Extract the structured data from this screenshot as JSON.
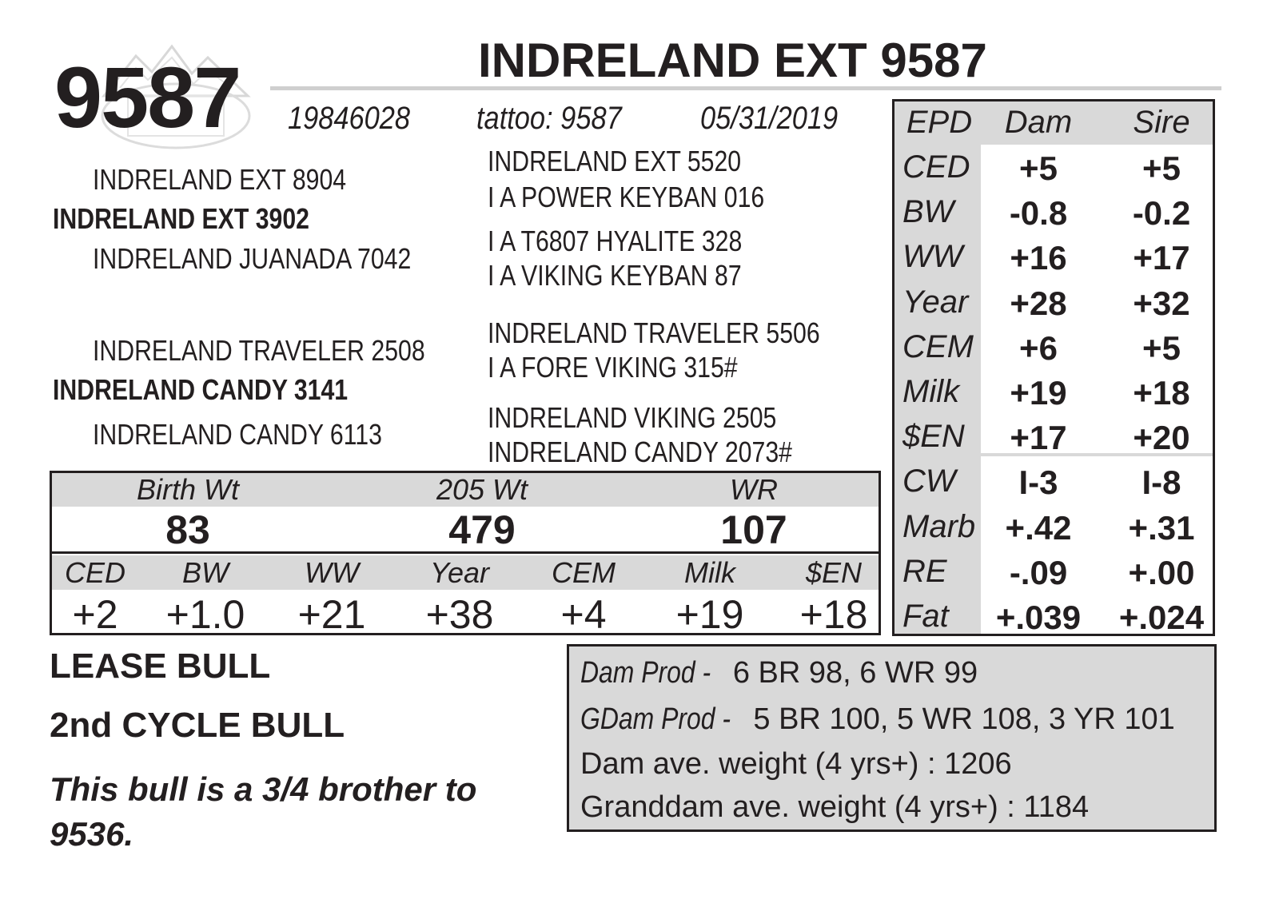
{
  "header": {
    "lot_number": "9587",
    "name": "INDRELAND EXT 9587",
    "registration": "19846028",
    "tattoo": "tattoo: 9587",
    "birth_date": "05/31/2019"
  },
  "pedigree": {
    "sire": "INDRELAND EXT 3902",
    "sire_sire": "INDRELAND EXT 8904",
    "sire_dam": "INDRELAND JUANADA 7042",
    "dam": "INDRELAND CANDY 3141",
    "dam_sire": "INDRELAND TRAVELER 2508",
    "dam_dam": "INDRELAND CANDY 6113",
    "gg": [
      "INDRELAND EXT 5520",
      "I A POWER KEYBAN 016",
      "I A T6807 HYALITE 328",
      "I A VIKING KEYBAN 87",
      "INDRELAND TRAVELER 5506",
      "I A FORE VIKING 315#",
      "INDRELAND VIKING 2505",
      "INDRELAND CANDY 2073#"
    ]
  },
  "performance": {
    "headers": [
      "Birth Wt",
      "205 Wt",
      "WR"
    ],
    "values": [
      "83",
      "479",
      "107"
    ]
  },
  "own_epds": {
    "headers": [
      "CED",
      "BW",
      "WW",
      "Year",
      "CEM",
      "Milk",
      "$EN"
    ],
    "values": [
      "+2",
      "+1.0",
      "+21",
      "+38",
      "+4",
      "+19",
      "+18"
    ]
  },
  "epd_table": {
    "headers": [
      "EPD",
      "Dam",
      "Sire"
    ],
    "rows": [
      {
        "label": "CED",
        "dam": "+5",
        "sire": "+5"
      },
      {
        "label": "BW",
        "dam": "-0.8",
        "sire": "-0.2"
      },
      {
        "label": "WW",
        "dam": "+16",
        "sire": "+17"
      },
      {
        "label": "Year",
        "dam": "+28",
        "sire": "+32"
      },
      {
        "label": "CEM",
        "dam": "+6",
        "sire": "+5"
      },
      {
        "label": "Milk",
        "dam": "+19",
        "sire": "+18"
      },
      {
        "label": "$EN",
        "dam": "+17",
        "sire": "+20"
      },
      {
        "label": "CW",
        "dam": "I-3",
        "sire": "I-8"
      },
      {
        "label": "Marb",
        "dam": "+.42",
        "sire": "+.31"
      },
      {
        "label": "RE",
        "dam": "-.09",
        "sire": "+.00"
      },
      {
        "label": "Fat",
        "dam": "+.039",
        "sire": "+.024"
      }
    ]
  },
  "notes": {
    "line1": "LEASE BULL",
    "line2": "2nd CYCLE BULL",
    "description": "This bull is a 3/4 brother to 9536."
  },
  "production": {
    "dam_prod_label": "Dam Prod -",
    "dam_prod_value": "6 BR 98, 6 WR 99",
    "gdam_prod_label": "GDam Prod -",
    "gdam_prod_value": "5 BR 100, 5 WR 108, 3 YR 101",
    "dam_weight": "Dam ave. weight (4 yrs+) : 1206",
    "granddam_weight": "Granddam ave. weight (4 yrs+) : 1184"
  },
  "colors": {
    "ink": "#231f20",
    "band_gray": "#d9d9d9",
    "rule_gray": "#cfcfcf"
  }
}
